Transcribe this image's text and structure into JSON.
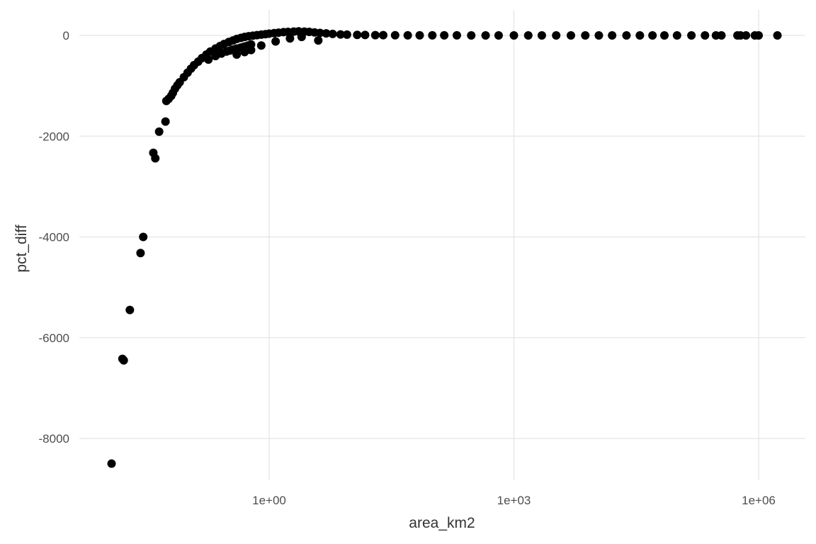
{
  "chart_data": {
    "type": "scatter",
    "title": "",
    "xlabel": "area_km2",
    "ylabel": "pct_diff",
    "x_scale": "log10",
    "xlim": [
      0.0025,
      3500000
    ],
    "ylim": [
      -8900,
      500
    ],
    "x_ticks": [
      {
        "value": 1,
        "label": "1e+00"
      },
      {
        "value": 1000,
        "label": "1e+03"
      },
      {
        "value": 1000000,
        "label": "1e+06"
      }
    ],
    "y_ticks": [
      {
        "value": 0,
        "label": "0"
      },
      {
        "value": -2000,
        "label": "-2000"
      },
      {
        "value": -4000,
        "label": "-4000"
      },
      {
        "value": -6000,
        "label": "-6000"
      },
      {
        "value": -8000,
        "label": "-8000"
      }
    ],
    "grid": true,
    "point_color": "#000000",
    "series": [
      {
        "x": [
          0.0117,
          0.0159,
          0.0165,
          0.0196,
          0.0265,
          0.0286,
          0.038,
          0.0402,
          0.0448,
          0.0536,
          0.0549,
          0.0585,
          0.063,
          0.066,
          0.07,
          0.075,
          0.08,
          0.09,
          0.1,
          0.11,
          0.12,
          0.135,
          0.15,
          0.17,
          0.19,
          0.22,
          0.25,
          0.28,
          0.32,
          0.36,
          0.4,
          0.45,
          0.5,
          0.56,
          0.63,
          0.71,
          0.8,
          0.9,
          1.0,
          1.15,
          1.3,
          1.5,
          1.7,
          2.0,
          2.3,
          2.7,
          3.1,
          3.6,
          4.2,
          5.0,
          6.0,
          7.5,
          9.0,
          12,
          15,
          20,
          25,
          35,
          50,
          70,
          100,
          140,
          200,
          300,
          450,
          650,
          1000,
          1500,
          2200,
          3300,
          5000,
          7500,
          11000,
          16000,
          24000,
          35000,
          50000,
          70000,
          100000,
          150000,
          220000,
          300000,
          350000,
          550000,
          600000,
          700000,
          900000,
          1000000,
          1700000,
          0.18,
          0.22,
          0.26,
          0.3,
          0.33,
          0.36,
          0.4,
          0.45,
          0.5,
          0.55,
          0.6,
          0.4,
          0.5,
          0.6,
          0.8,
          1.2,
          1.8,
          2.5,
          4.0
        ],
        "y": [
          -8500,
          -6420,
          -6450,
          -5450,
          -4320,
          -4000,
          -2330,
          -2440,
          -1910,
          -1710,
          -1300,
          -1260,
          -1200,
          -1140,
          -1060,
          -990,
          -930,
          -830,
          -740,
          -660,
          -590,
          -520,
          -450,
          -380,
          -320,
          -260,
          -210,
          -170,
          -130,
          -100,
          -70,
          -50,
          -30,
          -15,
          -5,
          5,
          15,
          25,
          35,
          45,
          55,
          65,
          70,
          75,
          80,
          75,
          70,
          60,
          50,
          40,
          30,
          20,
          15,
          10,
          8,
          5,
          5,
          3,
          2,
          2,
          1,
          1,
          1,
          0,
          0,
          0,
          0,
          0,
          0,
          0,
          0,
          0,
          0,
          0,
          0,
          0,
          0,
          0,
          0,
          0,
          0,
          0,
          0,
          0,
          0,
          0,
          0,
          0,
          0,
          -480,
          -410,
          -360,
          -320,
          -300,
          -280,
          -260,
          -240,
          -220,
          -200,
          -180,
          -380,
          -330,
          -290,
          -200,
          -120,
          -60,
          -30,
          -100
        ]
      }
    ]
  }
}
